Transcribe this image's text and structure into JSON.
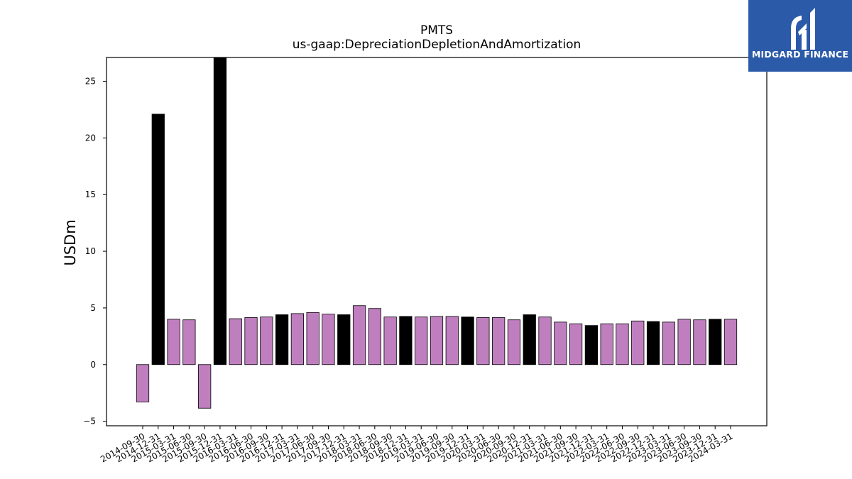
{
  "chart_data": {
    "type": "bar",
    "title": "PMTS",
    "subtitle": "us-gaap:DepreciationDepletionAndAmortization",
    "xlabel": "",
    "ylabel": "USDm",
    "ylim": [
      -5.4,
      27.1
    ],
    "yticks": [
      -5,
      0,
      5,
      10,
      15,
      20,
      25
    ],
    "categories": [
      "2014-09-30",
      "2014-12-31",
      "2015-03-31",
      "2015-06-30",
      "2015-09-30",
      "2015-12-31",
      "2016-03-31",
      "2016-06-30",
      "2016-09-30",
      "2016-12-31",
      "2017-03-31",
      "2017-06-30",
      "2017-09-30",
      "2017-12-31",
      "2018-03-31",
      "2018-06-30",
      "2018-09-30",
      "2018-12-31",
      "2019-03-31",
      "2019-06-30",
      "2019-09-30",
      "2019-12-31",
      "2020-03-31",
      "2020-06-30",
      "2020-09-30",
      "2020-12-31",
      "2021-03-31",
      "2021-06-30",
      "2021-09-30",
      "2021-12-31",
      "2022-03-31",
      "2022-06-30",
      "2022-09-30",
      "2022-12-31",
      "2023-03-31",
      "2023-06-30",
      "2023-09-30",
      "2023-12-31",
      "2024-03-31"
    ],
    "values": [
      -3.3,
      22.1,
      4.0,
      3.95,
      -3.85,
      28.5,
      4.05,
      4.15,
      4.2,
      4.4,
      4.5,
      4.6,
      4.45,
      4.4,
      5.2,
      4.95,
      4.2,
      4.25,
      4.2,
      4.25,
      4.25,
      4.2,
      4.15,
      4.15,
      3.95,
      4.4,
      4.2,
      3.75,
      3.6,
      3.45,
      3.6,
      3.6,
      3.85,
      3.8,
      3.75,
      4.0,
      3.95,
      4.0,
      4.0
    ],
    "annual_flags": [
      0,
      1,
      0,
      0,
      0,
      1,
      0,
      0,
      0,
      1,
      0,
      0,
      0,
      1,
      0,
      0,
      0,
      1,
      0,
      0,
      0,
      1,
      0,
      0,
      0,
      1,
      0,
      0,
      0,
      1,
      0,
      0,
      0,
      1,
      0,
      0,
      0,
      1,
      0
    ],
    "colors": {
      "quarter": "#bf7fbf",
      "annual": "#000000"
    },
    "grid": false,
    "legend": "none"
  },
  "brand": {
    "name": "MIDGARD FINANCE",
    "icon": "midgard-logo-icon",
    "background": "#2b5aa8"
  }
}
